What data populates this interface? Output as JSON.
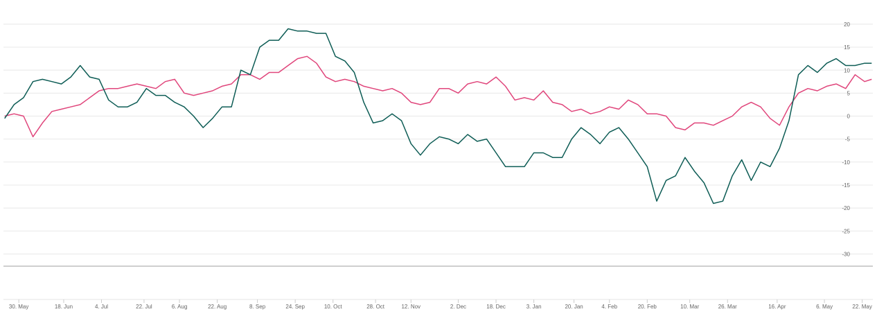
{
  "chart_data": {
    "type": "line",
    "x": [
      -6,
      -2,
      2,
      6,
      10,
      14,
      18,
      22,
      26,
      30,
      34,
      38,
      42,
      46,
      50,
      54,
      58,
      62,
      66,
      70,
      74,
      78,
      82,
      86,
      90,
      94,
      98,
      102,
      106,
      110,
      114,
      118,
      122,
      126,
      130,
      134,
      138,
      142,
      146,
      150,
      154,
      158,
      162,
      166,
      170,
      174,
      178,
      182,
      186,
      190,
      194,
      198,
      202,
      206,
      210,
      214,
      218,
      222,
      226,
      230,
      234,
      238,
      242,
      246,
      250,
      254,
      258,
      262,
      266,
      270,
      274,
      278,
      282,
      286,
      290,
      294,
      298,
      302,
      306,
      310,
      314,
      318,
      322,
      326,
      330,
      334,
      338,
      342,
      346,
      350,
      354,
      358,
      361
    ],
    "series": [
      {
        "color": "#0d5c55",
        "values": [
          -0.5,
          2.5,
          4,
          7.5,
          8,
          7.5,
          7,
          8.5,
          11,
          8.5,
          8,
          3.5,
          2,
          2,
          3,
          6,
          4.5,
          4.5,
          3,
          2,
          0,
          -2.5,
          -0.5,
          2,
          2,
          10,
          9,
          15,
          16.5,
          16.5,
          19,
          18.5,
          18.5,
          18,
          18,
          13,
          12,
          9.5,
          3,
          -1.5,
          -1,
          0.5,
          -1,
          -6,
          -8.5,
          -6,
          -4.5,
          -5,
          -6,
          -4,
          -5.5,
          -5,
          -8,
          -11,
          -11,
          -11,
          -8,
          -8,
          -9,
          -9,
          -5,
          -2.5,
          -4,
          -6,
          -3.5,
          -2.5,
          -5,
          -8,
          -11,
          -18.5,
          -14,
          -13,
          -9,
          -12,
          -14.5,
          -19,
          -18.5,
          -13,
          -9.5,
          -14,
          -10,
          -11,
          -7,
          -1,
          9,
          11,
          9.5,
          11.5,
          12.5,
          11,
          11,
          11.5,
          11.5
        ]
      },
      {
        "color": "#e0457b",
        "values": [
          0,
          0.5,
          0,
          -4.5,
          -1.5,
          1,
          1.5,
          2,
          2.5,
          4,
          5.5,
          6,
          6,
          6.5,
          7,
          6.5,
          6,
          7.5,
          8,
          5,
          4.5,
          5,
          5.5,
          6.5,
          7,
          9,
          9,
          8,
          9.5,
          9.5,
          11,
          12.5,
          13,
          11.5,
          8.5,
          7.5,
          8,
          7.5,
          6.5,
          6,
          5.5,
          6,
          5,
          3,
          2.5,
          3,
          6,
          6,
          5,
          7,
          7.5,
          7,
          8.5,
          6.5,
          3.5,
          4,
          3.5,
          5.5,
          3,
          2.5,
          1,
          1.5,
          0.5,
          1,
          2,
          1.5,
          3.5,
          2.5,
          0.5,
          0.5,
          0,
          -2.5,
          -3,
          -1.5,
          -1.5,
          -2,
          -1,
          0,
          2,
          3,
          2,
          -0.5,
          -2,
          2,
          5,
          6,
          5.5,
          6.5,
          7,
          6,
          9,
          7.5,
          8
        ]
      }
    ],
    "xlim": [
      -6.5,
      361.5
    ],
    "xticks": [
      {
        "value": 0,
        "label": "30. May"
      },
      {
        "value": 19,
        "label": "18. Jun"
      },
      {
        "value": 35,
        "label": "4. Jul"
      },
      {
        "value": 53,
        "label": "22. Jul"
      },
      {
        "value": 68,
        "label": "6. Aug"
      },
      {
        "value": 84,
        "label": "22. Aug"
      },
      {
        "value": 101,
        "label": "8. Sep"
      },
      {
        "value": 117,
        "label": "24. Sep"
      },
      {
        "value": 133,
        "label": "10. Oct"
      },
      {
        "value": 151,
        "label": "28. Oct"
      },
      {
        "value": 166,
        "label": "12. Nov"
      },
      {
        "value": 186,
        "label": "2. Dec"
      },
      {
        "value": 202,
        "label": "18. Dec"
      },
      {
        "value": 218,
        "label": "3. Jan"
      },
      {
        "value": 235,
        "label": "20. Jan"
      },
      {
        "value": 250,
        "label": "4. Feb"
      },
      {
        "value": 266,
        "label": "20. Feb"
      },
      {
        "value": 284,
        "label": "10. Mar"
      },
      {
        "value": 300,
        "label": "26. Mar"
      },
      {
        "value": 321,
        "label": "16. Apr"
      },
      {
        "value": 341,
        "label": "6. May"
      },
      {
        "value": 357,
        "label": "22. May"
      }
    ],
    "ylim": [
      -32.5,
      24.5
    ],
    "yticks": [
      20,
      15,
      10,
      5,
      0,
      -5,
      -10,
      -15,
      -20,
      -25,
      -30
    ],
    "grid": true
  }
}
